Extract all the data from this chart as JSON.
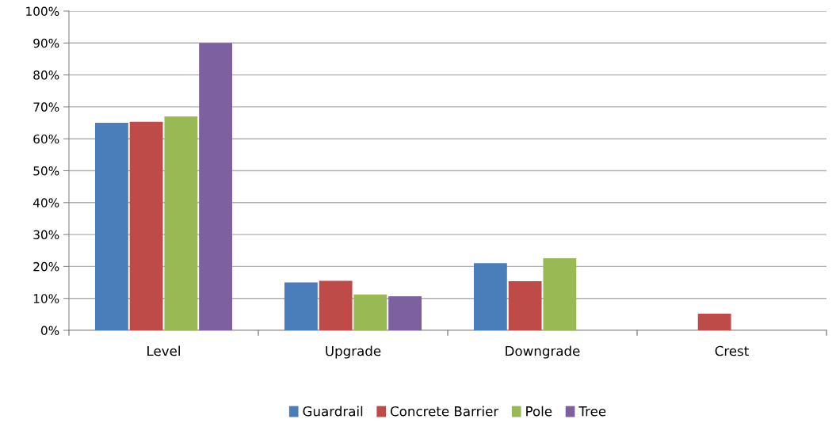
{
  "chart_data": {
    "type": "bar",
    "categories": [
      "Level",
      "Upgrade",
      "Downgrade",
      "Crest"
    ],
    "series": [
      {
        "name": "Guardrail",
        "color": "#4a7ebb",
        "values": [
          65,
          15,
          21,
          0
        ]
      },
      {
        "name": "Concrete Barrier",
        "color": "#be4b48",
        "values": [
          65.3,
          15.5,
          15.4,
          5.2
        ]
      },
      {
        "name": "Pole",
        "color": "#98b954",
        "values": [
          67,
          11.2,
          22.6,
          0
        ]
      },
      {
        "name": "Tree",
        "color": "#7d60a0",
        "values": [
          90,
          10.7,
          0,
          0
        ]
      }
    ],
    "ylim": [
      0,
      100
    ],
    "yticks": [
      {
        "value": 0,
        "label": "0%"
      },
      {
        "value": 10,
        "label": "10%"
      },
      {
        "value": 20,
        "label": "20%"
      },
      {
        "value": 30,
        "label": "30%"
      },
      {
        "value": 40,
        "label": "40%"
      },
      {
        "value": 50,
        "label": "50%"
      },
      {
        "value": 60,
        "label": "60%"
      },
      {
        "value": 70,
        "label": "70%"
      },
      {
        "value": 80,
        "label": "80%"
      },
      {
        "value": 90,
        "label": "90%"
      },
      {
        "value": 100,
        "label": "100%"
      }
    ],
    "grid": "y",
    "legend": "bottom"
  }
}
